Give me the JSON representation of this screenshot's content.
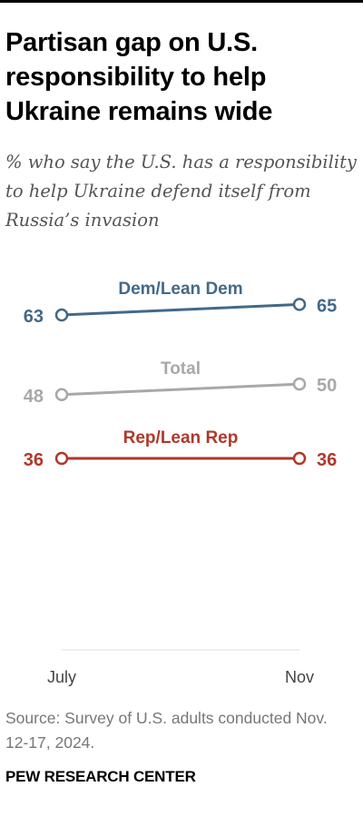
{
  "title": "Partisan gap on U.S. responsibility to help Ukraine remains wide",
  "subtitle": "% who say the U.S. has a responsibility to help Ukraine defend itself from Russia’s invasion",
  "source": "Source: Survey of U.S. adults conducted Nov. 12-17, 2024.",
  "brand": "PEW RESEARCH CENTER",
  "chart_data": {
    "type": "line",
    "categories": [
      "July",
      "Nov"
    ],
    "series": [
      {
        "name": "Dem/Lean Dem",
        "values": [
          63,
          65
        ],
        "color": "#436988"
      },
      {
        "name": "Total",
        "values": [
          48,
          50
        ],
        "color": "#a8a8a8"
      },
      {
        "name": "Rep/Lean Rep",
        "values": [
          36,
          36
        ],
        "color": "#b0382a"
      }
    ],
    "grid": false,
    "legend": "direct labels"
  }
}
